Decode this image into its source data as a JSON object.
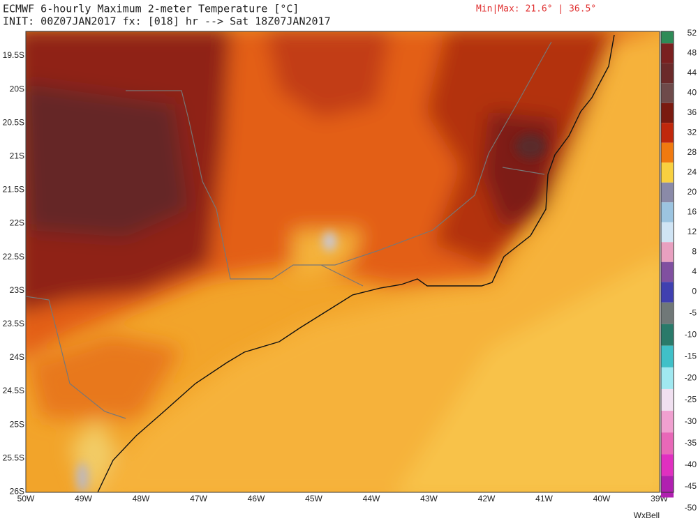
{
  "header": {
    "title": "ECMWF 6-hourly Maximum 2-meter Temperature [°C]",
    "subtitle": "INIT: 00Z07JAN2017 fx: [018] hr --> Sat 18Z07JAN2017",
    "minmax": "Min|Max: 21.6° | 36.5°"
  },
  "map": {
    "lat_labels": [
      "19.5S",
      "20S",
      "20.5S",
      "21S",
      "21.5S",
      "22S",
      "22.5S",
      "23S",
      "23.5S",
      "24S",
      "24.5S",
      "25S",
      "25.5S",
      "26S"
    ],
    "lon_labels": [
      "50W",
      "49W",
      "48W",
      "47W",
      "46W",
      "45W",
      "44W",
      "43W",
      "42W",
      "41W",
      "40W",
      "39W"
    ]
  },
  "colorbar": {
    "labels": [
      "52",
      "48",
      "44",
      "40",
      "36",
      "32",
      "28",
      "24",
      "20",
      "16",
      "12",
      "8",
      "4",
      "0",
      "-5",
      "-10",
      "-15",
      "-20",
      "-25",
      "-30",
      "-35",
      "-40",
      "-45",
      "-50"
    ]
  },
  "footer": {
    "credit": "WxBell"
  }
}
